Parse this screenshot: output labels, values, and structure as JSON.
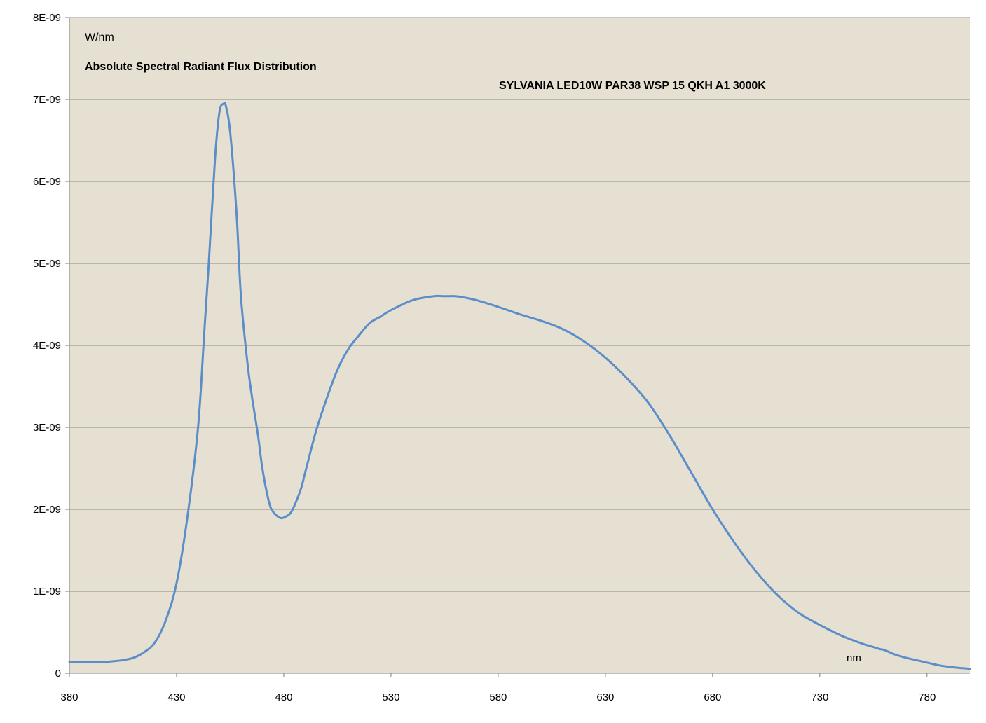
{
  "chart_data": {
    "type": "line",
    "units_label": "W/nm",
    "title": "Absolute Spectral Radiant Flux Distribution",
    "series_label": "SYLVANIA LED10W PAR38 WSP 15 QKH A1 3000K",
    "xlabel": "nm",
    "xlim": [
      380,
      800
    ],
    "ylim": [
      0,
      8e-09
    ],
    "x_ticks": [
      "380",
      "430",
      "480",
      "530",
      "580",
      "630",
      "680",
      "730",
      "780"
    ],
    "y_ticks": [
      "0",
      "1E-09",
      "2E-09",
      "3E-09",
      "4E-09",
      "5E-09",
      "6E-09",
      "7E-09",
      "8E-09"
    ],
    "grid": "horizontal",
    "colors": {
      "plot_bg": "#e6e0d2",
      "line": "#5b8ec9",
      "grid": "#8c8c8c"
    },
    "series": [
      {
        "name": "SYLVANIA LED10W PAR38 WSP 15 QKH A1 3000K",
        "x": [
          380,
          385,
          390,
          395,
          400,
          405,
          410,
          415,
          420,
          425,
          430,
          435,
          440,
          443,
          445,
          448,
          450,
          452,
          453,
          455,
          458,
          460,
          463,
          465,
          468,
          470,
          473,
          475,
          478,
          480,
          483,
          485,
          488,
          490,
          495,
          500,
          505,
          510,
          515,
          520,
          525,
          530,
          540,
          550,
          555,
          560,
          565,
          570,
          580,
          590,
          600,
          610,
          620,
          630,
          640,
          650,
          660,
          670,
          680,
          690,
          700,
          710,
          720,
          730,
          740,
          750,
          755,
          758,
          760,
          765,
          770,
          775,
          780,
          785,
          790,
          795,
          800
        ],
        "y": [
          1.4e-10,
          1.4e-10,
          1.35e-10,
          1.35e-10,
          1.45e-10,
          1.6e-10,
          1.9e-10,
          2.6e-10,
          3.8e-10,
          6.5e-10,
          1.1e-09,
          1.9e-09,
          3e-09,
          4.2e-09,
          5e-09,
          6.3e-09,
          6.85e-09,
          6.95e-09,
          6.92e-09,
          6.6e-09,
          5.6e-09,
          4.6e-09,
          3.8e-09,
          3.4e-09,
          2.9e-09,
          2.5e-09,
          2.1e-09,
          1.97e-09,
          1.9e-09,
          1.9e-09,
          1.95e-09,
          2.05e-09,
          2.25e-09,
          2.45e-09,
          2.95e-09,
          3.35e-09,
          3.7e-09,
          3.95e-09,
          4.12e-09,
          4.27e-09,
          4.35e-09,
          4.43e-09,
          4.55e-09,
          4.6e-09,
          4.6e-09,
          4.6e-09,
          4.58e-09,
          4.55e-09,
          4.47e-09,
          4.38e-09,
          4.3e-09,
          4.2e-09,
          4.05e-09,
          3.85e-09,
          3.6e-09,
          3.3e-09,
          2.9e-09,
          2.45e-09,
          2e-09,
          1.6e-09,
          1.25e-09,
          9.6e-10,
          7.4e-10,
          5.9e-10,
          4.6e-10,
          3.6e-10,
          3.2e-10,
          2.95e-10,
          2.85e-10,
          2.3e-10,
          1.9e-10,
          1.6e-10,
          1.3e-10,
          1e-10,
          8e-11,
          6.5e-11,
          5.5e-11
        ]
      }
    ]
  }
}
